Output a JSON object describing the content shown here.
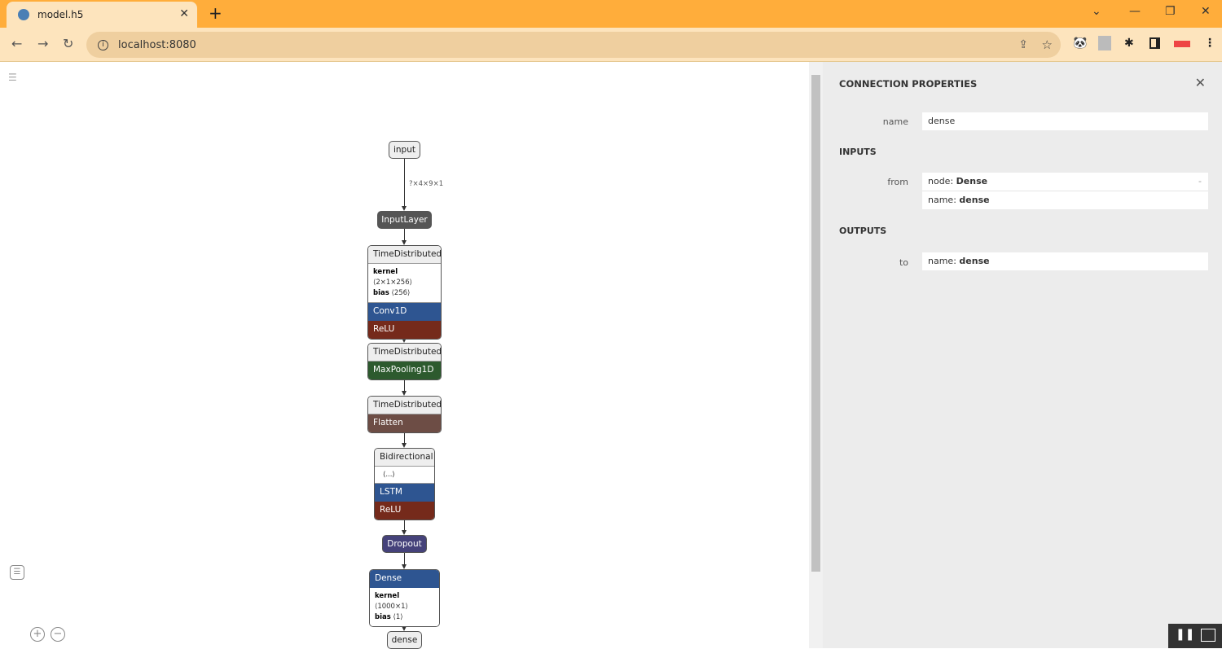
{
  "browser": {
    "tab_title": "model.h5",
    "url": "localhost:8080"
  },
  "graph": {
    "edge_label": "?×4×9×1",
    "input": "input",
    "input_layer": "InputLayer",
    "td1": {
      "header": "TimeDistributed",
      "attrs": [
        {
          "k": "kernel",
          "v": "⟨2×1×256⟩"
        },
        {
          "k": "bias",
          "v": "⟨256⟩"
        }
      ],
      "layer": "Conv1D",
      "activation": "ReLU"
    },
    "td2": {
      "header": "TimeDistributed",
      "layer": "MaxPooling1D"
    },
    "td3": {
      "header": "TimeDistributed",
      "layer": "Flatten"
    },
    "bi": {
      "header": "Bidirectional",
      "attr": "⟨...⟩",
      "layer": "LSTM",
      "activation": "ReLU"
    },
    "dropout": "Dropout",
    "dense": {
      "header": "Dense",
      "attrs": [
        {
          "k": "kernel",
          "v": "⟨1000×1⟩"
        },
        {
          "k": "bias",
          "v": "⟨1⟩"
        }
      ]
    },
    "output": "dense"
  },
  "panel": {
    "title": "CONNECTION PROPERTIES",
    "name_label": "name",
    "name_value": "dense",
    "inputs_title": "INPUTS",
    "from_label": "from",
    "from_node_key": "node: ",
    "from_node_val": "Dense",
    "from_name_key": "name: ",
    "from_name_val": "dense",
    "outputs_title": "OUTPUTS",
    "to_label": "to",
    "to_name_key": "name: ",
    "to_name_val": "dense"
  },
  "colors": {
    "conv": "#2e5591",
    "relu": "#752a1b",
    "pool": "#2d5a2e",
    "flatten": "#6d4d45",
    "dropout": "#45427a",
    "inputlayer": "#555555"
  }
}
